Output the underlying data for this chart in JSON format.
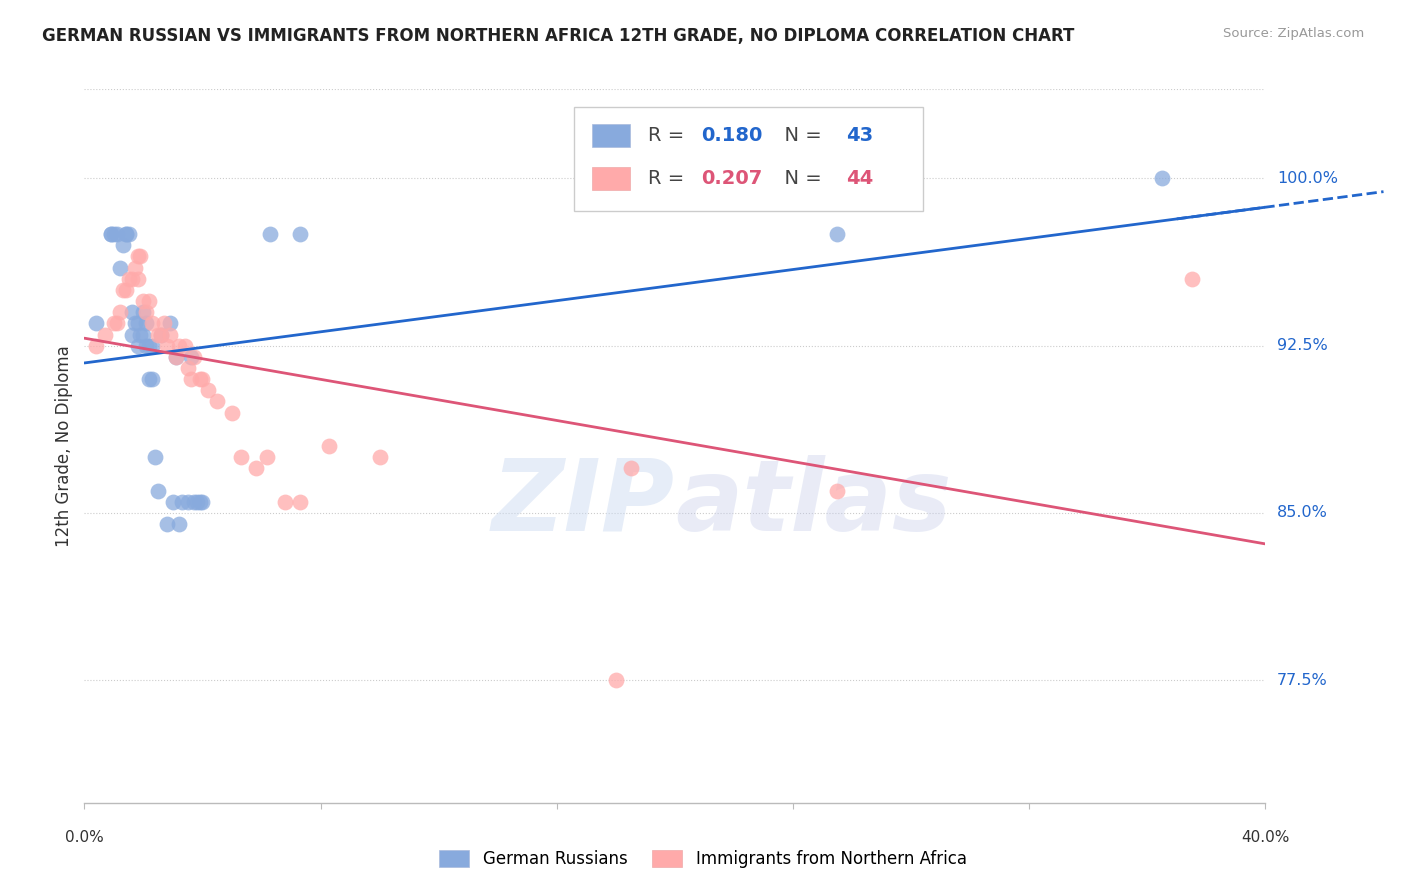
{
  "title": "GERMAN RUSSIAN VS IMMIGRANTS FROM NORTHERN AFRICA 12TH GRADE, NO DIPLOMA CORRELATION CHART",
  "source": "Source: ZipAtlas.com",
  "ylabel": "12th Grade, No Diploma",
  "yticks": [
    0.775,
    0.85,
    0.925,
    1.0
  ],
  "ytick_labels": [
    "77.5%",
    "85.0%",
    "92.5%",
    "100.0%"
  ],
  "xlim": [
    0.0,
    0.4
  ],
  "ylim": [
    0.72,
    1.04
  ],
  "blue_R": 0.18,
  "blue_N": 43,
  "pink_R": 0.207,
  "pink_N": 44,
  "blue_scatter_color": "#88AADD",
  "pink_scatter_color": "#FFAAAA",
  "blue_line_color": "#2266CC",
  "pink_line_color": "#DD5577",
  "legend_blue_label": "German Russians",
  "legend_pink_label": "Immigrants from Northern Africa",
  "blue_x": [
    0.004,
    0.009,
    0.009,
    0.01,
    0.011,
    0.012,
    0.013,
    0.014,
    0.014,
    0.015,
    0.016,
    0.016,
    0.017,
    0.018,
    0.018,
    0.019,
    0.02,
    0.02,
    0.021,
    0.021,
    0.022,
    0.022,
    0.023,
    0.023,
    0.024,
    0.025,
    0.026,
    0.028,
    0.029,
    0.03,
    0.031,
    0.032,
    0.033,
    0.035,
    0.036,
    0.037,
    0.038,
    0.039,
    0.04,
    0.063,
    0.073,
    0.255,
    0.365
  ],
  "blue_y": [
    0.935,
    0.975,
    0.975,
    0.975,
    0.975,
    0.96,
    0.97,
    0.975,
    0.975,
    0.975,
    0.94,
    0.93,
    0.935,
    0.935,
    0.925,
    0.93,
    0.94,
    0.93,
    0.935,
    0.925,
    0.925,
    0.91,
    0.925,
    0.91,
    0.875,
    0.86,
    0.93,
    0.845,
    0.935,
    0.855,
    0.92,
    0.845,
    0.855,
    0.855,
    0.92,
    0.855,
    0.855,
    0.855,
    0.855,
    0.975,
    0.975,
    0.975,
    1.0
  ],
  "pink_x": [
    0.004,
    0.007,
    0.01,
    0.011,
    0.012,
    0.013,
    0.014,
    0.015,
    0.016,
    0.017,
    0.018,
    0.018,
    0.019,
    0.02,
    0.021,
    0.022,
    0.023,
    0.025,
    0.026,
    0.027,
    0.028,
    0.029,
    0.031,
    0.032,
    0.034,
    0.035,
    0.036,
    0.037,
    0.039,
    0.04,
    0.042,
    0.045,
    0.05,
    0.053,
    0.058,
    0.062,
    0.068,
    0.073,
    0.083,
    0.1,
    0.18,
    0.185,
    0.255,
    0.375
  ],
  "pink_y": [
    0.925,
    0.93,
    0.935,
    0.935,
    0.94,
    0.95,
    0.95,
    0.955,
    0.955,
    0.96,
    0.965,
    0.955,
    0.965,
    0.945,
    0.94,
    0.945,
    0.935,
    0.93,
    0.93,
    0.935,
    0.925,
    0.93,
    0.92,
    0.925,
    0.925,
    0.915,
    0.91,
    0.92,
    0.91,
    0.91,
    0.905,
    0.9,
    0.895,
    0.875,
    0.87,
    0.875,
    0.855,
    0.855,
    0.88,
    0.875,
    0.775,
    0.87,
    0.86,
    0.955
  ]
}
